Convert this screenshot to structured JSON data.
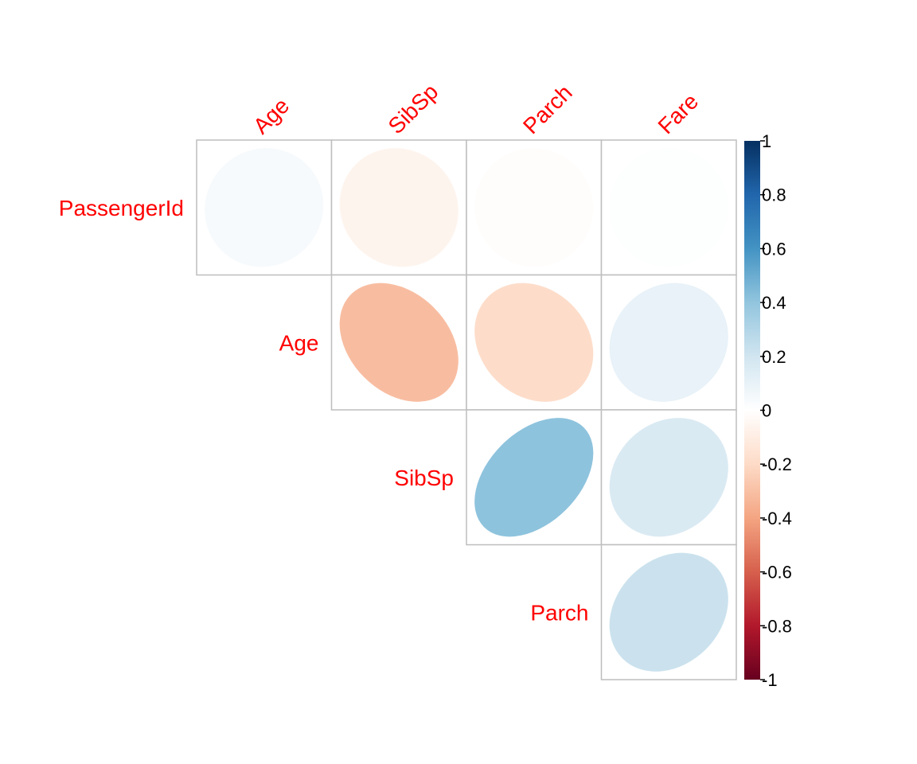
{
  "chart_data": {
    "type": "heatmap",
    "style": "ellipse correlation matrix (upper triangle)",
    "column_labels": [
      "Age",
      "SibSp",
      "Parch",
      "Fare"
    ],
    "row_labels": [
      "PassengerId",
      "Age",
      "SibSp",
      "Parch"
    ],
    "cells": [
      {
        "row": "PassengerId",
        "col": "Age",
        "value": 0.04
      },
      {
        "row": "PassengerId",
        "col": "SibSp",
        "value": -0.06
      },
      {
        "row": "PassengerId",
        "col": "Parch",
        "value": -0.01
      },
      {
        "row": "PassengerId",
        "col": "Fare",
        "value": 0.01
      },
      {
        "row": "Age",
        "col": "SibSp",
        "value": -0.31
      },
      {
        "row": "Age",
        "col": "Parch",
        "value": -0.19
      },
      {
        "row": "Age",
        "col": "Fare",
        "value": 0.1
      },
      {
        "row": "SibSp",
        "col": "Parch",
        "value": 0.41
      },
      {
        "row": "SibSp",
        "col": "Fare",
        "value": 0.16
      },
      {
        "row": "Parch",
        "col": "Fare",
        "value": 0.22
      }
    ],
    "colorbar": {
      "range": [
        -1,
        1
      ],
      "ticks": [
        "1",
        "0.8",
        "0.6",
        "0.4",
        "0.2",
        "0",
        "-0.2",
        "-0.4",
        "-0.6",
        "-0.8",
        "-1"
      ],
      "colors": [
        "#67001F",
        "#B2182B",
        "#D6604D",
        "#F4A582",
        "#FDDBC7",
        "#FFFFFF",
        "#D1E5F0",
        "#92C5DE",
        "#4393C3",
        "#2166AC",
        "#053061"
      ]
    },
    "label_color": "#ff0000",
    "grid_color": "#bebebe"
  }
}
